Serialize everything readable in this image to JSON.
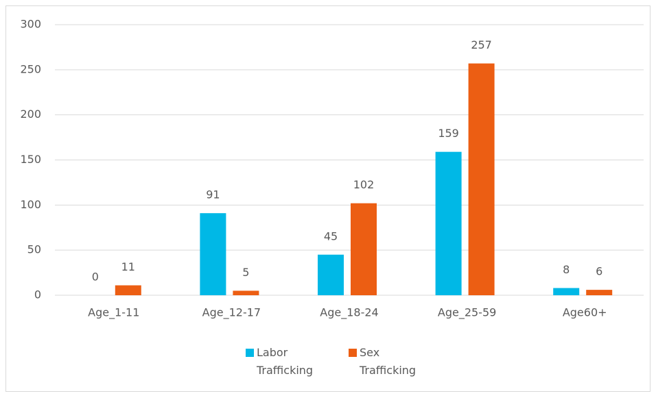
{
  "chart_data": {
    "type": "bar",
    "categories": [
      "Age_1-11",
      "Age_12-17",
      "Age_18-24",
      "Age_25-59",
      "Age60+"
    ],
    "series": [
      {
        "name": "Labor Trafficking",
        "color": "#00b8e6",
        "values": [
          0,
          91,
          45,
          159,
          8
        ]
      },
      {
        "name": "Sex Trafficking",
        "color": "#ec5e13",
        "values": [
          11,
          5,
          102,
          257,
          6
        ]
      }
    ],
    "ylim": [
      0,
      300
    ],
    "yticks": [
      0,
      50,
      100,
      150,
      200,
      250,
      300
    ],
    "grid": true,
    "legend": "bottom"
  }
}
